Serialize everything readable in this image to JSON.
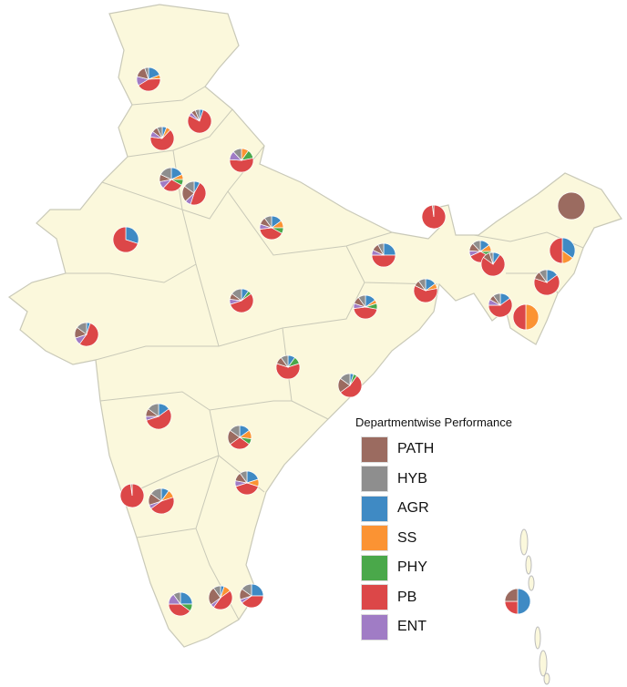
{
  "legend": {
    "title": "Departmentwise Performance",
    "items": [
      {
        "key": "PATH",
        "label": "PATH",
        "color": "#9b6b60"
      },
      {
        "key": "HYB",
        "label": "HYB",
        "color": "#8e8e8e"
      },
      {
        "key": "AGR",
        "label": "AGR",
        "color": "#3f8ac4"
      },
      {
        "key": "SS",
        "label": "SS",
        "color": "#fb9333"
      },
      {
        "key": "PHY",
        "label": "PHY",
        "color": "#4aa84a"
      },
      {
        "key": "PB",
        "label": "PB",
        "color": "#dc4748"
      },
      {
        "key": "ENT",
        "label": "ENT",
        "color": "#a07cc5"
      }
    ]
  },
  "map": {
    "land_color": "#fbf8dc",
    "border_color": "#c9c9b8"
  },
  "pies": [
    {
      "region": "Jammu & Kashmir",
      "values": {
        "PATH": 15,
        "HYB": 5,
        "AGR": 18,
        "SS": 5,
        "PHY": 0,
        "PB": 40,
        "ENT": 12
      }
    },
    {
      "region": "Himachal Pradesh",
      "values": {
        "PATH": 6,
        "HYB": 6,
        "AGR": 5,
        "SS": 0,
        "PHY": 0,
        "PB": 78,
        "ENT": 5
      }
    },
    {
      "region": "Punjab",
      "values": {
        "PATH": 8,
        "HYB": 7,
        "AGR": 6,
        "SS": 6,
        "PHY": 0,
        "PB": 65,
        "ENT": 8
      }
    },
    {
      "region": "Uttarakhand",
      "values": {
        "PATH": 0,
        "HYB": 12,
        "AGR": 0,
        "SS": 10,
        "PHY": 12,
        "PB": 54,
        "ENT": 12
      }
    },
    {
      "region": "Haryana",
      "values": {
        "PATH": 10,
        "HYB": 18,
        "AGR": 18,
        "SS": 7,
        "PHY": 8,
        "PB": 29,
        "ENT": 10
      }
    },
    {
      "region": "Delhi",
      "values": {
        "PATH": 22,
        "HYB": 15,
        "AGR": 8,
        "SS": 0,
        "PHY": 0,
        "PB": 47,
        "ENT": 8
      }
    },
    {
      "region": "Rajasthan",
      "values": {
        "PATH": 0,
        "HYB": 0,
        "AGR": 30,
        "SS": 0,
        "PHY": 0,
        "PB": 70,
        "ENT": 0
      }
    },
    {
      "region": "Uttar Pradesh",
      "values": {
        "PATH": 10,
        "HYB": 10,
        "AGR": 15,
        "SS": 10,
        "PHY": 8,
        "PB": 40,
        "ENT": 7
      }
    },
    {
      "region": "Bihar",
      "values": {
        "PATH": 10,
        "HYB": 8,
        "AGR": 25,
        "SS": 0,
        "PHY": 0,
        "PB": 50,
        "ENT": 7
      }
    },
    {
      "region": "Sikkim",
      "values": {
        "PATH": 2,
        "HYB": 0,
        "AGR": 0,
        "SS": 0,
        "PHY": 0,
        "PB": 98,
        "ENT": 0
      }
    },
    {
      "region": "Meghalaya",
      "values": {
        "PATH": 12,
        "HYB": 12,
        "AGR": 15,
        "SS": 10,
        "PHY": 8,
        "PB": 35,
        "ENT": 8
      }
    },
    {
      "region": "Meghalaya 2",
      "values": {
        "PATH": 10,
        "HYB": 5,
        "AGR": 10,
        "SS": 0,
        "PHY": 0,
        "PB": 75,
        "ENT": 0
      }
    },
    {
      "region": "Arunachal Pradesh",
      "values": {
        "PATH": 100,
        "HYB": 0,
        "AGR": 0,
        "SS": 0,
        "PHY": 0,
        "PB": 0,
        "ENT": 0
      }
    },
    {
      "region": "Assam",
      "values": {
        "PATH": 0,
        "HYB": 0,
        "AGR": 35,
        "SS": 15,
        "PHY": 0,
        "PB": 50,
        "ENT": 0
      }
    },
    {
      "region": "Manipur",
      "values": {
        "PATH": 10,
        "HYB": 10,
        "AGR": 15,
        "SS": 0,
        "PHY": 0,
        "PB": 65,
        "ENT": 0
      }
    },
    {
      "region": "Tripura",
      "values": {
        "PATH": 7,
        "HYB": 10,
        "AGR": 15,
        "SS": 0,
        "PHY": 0,
        "PB": 60,
        "ENT": 8
      }
    },
    {
      "region": "Mizoram",
      "values": {
        "PATH": 0,
        "HYB": 0,
        "AGR": 0,
        "SS": 50,
        "PHY": 0,
        "PB": 50,
        "ENT": 0
      }
    },
    {
      "region": "West Bengal",
      "values": {
        "PATH": 8,
        "HYB": 10,
        "AGR": 15,
        "SS": 7,
        "PHY": 0,
        "PB": 60,
        "ENT": 0
      }
    },
    {
      "region": "Jharkhand",
      "values": {
        "PATH": 10,
        "HYB": 10,
        "AGR": 15,
        "SS": 5,
        "PHY": 8,
        "PB": 45,
        "ENT": 7
      }
    },
    {
      "region": "Madhya Pradesh",
      "values": {
        "PATH": 8,
        "HYB": 15,
        "AGR": 10,
        "SS": 0,
        "PHY": 5,
        "PB": 55,
        "ENT": 7
      }
    },
    {
      "region": "Gujarat",
      "values": {
        "PATH": 15,
        "HYB": 15,
        "AGR": 5,
        "SS": 0,
        "PHY": 0,
        "PB": 55,
        "ENT": 10
      }
    },
    {
      "region": "Chhattisgarh",
      "values": {
        "PATH": 10,
        "HYB": 10,
        "AGR": 10,
        "SS": 0,
        "PHY": 10,
        "PB": 60,
        "ENT": 0
      }
    },
    {
      "region": "Odisha",
      "values": {
        "PATH": 20,
        "HYB": 15,
        "AGR": 5,
        "SS": 0,
        "PHY": 5,
        "PB": 55,
        "ENT": 0
      }
    },
    {
      "region": "Maharashtra",
      "values": {
        "PATH": 10,
        "HYB": 15,
        "AGR": 15,
        "SS": 0,
        "PHY": 0,
        "PB": 55,
        "ENT": 5
      }
    },
    {
      "region": "Telangana",
      "values": {
        "PATH": 20,
        "HYB": 15,
        "AGR": 15,
        "SS": 12,
        "PHY": 8,
        "PB": 30,
        "ENT": 0
      }
    },
    {
      "region": "Andhra Pradesh",
      "values": {
        "PATH": 12,
        "HYB": 10,
        "AGR": 20,
        "SS": 10,
        "PHY": 0,
        "PB": 40,
        "ENT": 8
      }
    },
    {
      "region": "Goa",
      "values": {
        "PATH": 2,
        "HYB": 0,
        "AGR": 0,
        "SS": 0,
        "PHY": 0,
        "PB": 98,
        "ENT": 0
      }
    },
    {
      "region": "Karnataka",
      "values": {
        "PATH": 15,
        "HYB": 15,
        "AGR": 10,
        "SS": 10,
        "PHY": 0,
        "PB": 45,
        "ENT": 5
      }
    },
    {
      "region": "Kerala",
      "values": {
        "PATH": 0,
        "HYB": 10,
        "AGR": 25,
        "SS": 0,
        "PHY": 10,
        "PB": 40,
        "ENT": 15
      }
    },
    {
      "region": "Tamil Nadu",
      "values": {
        "PATH": 25,
        "HYB": 10,
        "AGR": 5,
        "SS": 10,
        "PHY": 0,
        "PB": 45,
        "ENT": 5
      }
    },
    {
      "region": "Puducherry",
      "values": {
        "PATH": 15,
        "HYB": 15,
        "AGR": 25,
        "SS": 0,
        "PHY": 0,
        "PB": 40,
        "ENT": 5
      }
    },
    {
      "region": "Andaman & Nicobar",
      "values": {
        "PATH": 25,
        "HYB": 0,
        "AGR": 50,
        "SS": 0,
        "PHY": 0,
        "PB": 25,
        "ENT": 0
      }
    }
  ]
}
